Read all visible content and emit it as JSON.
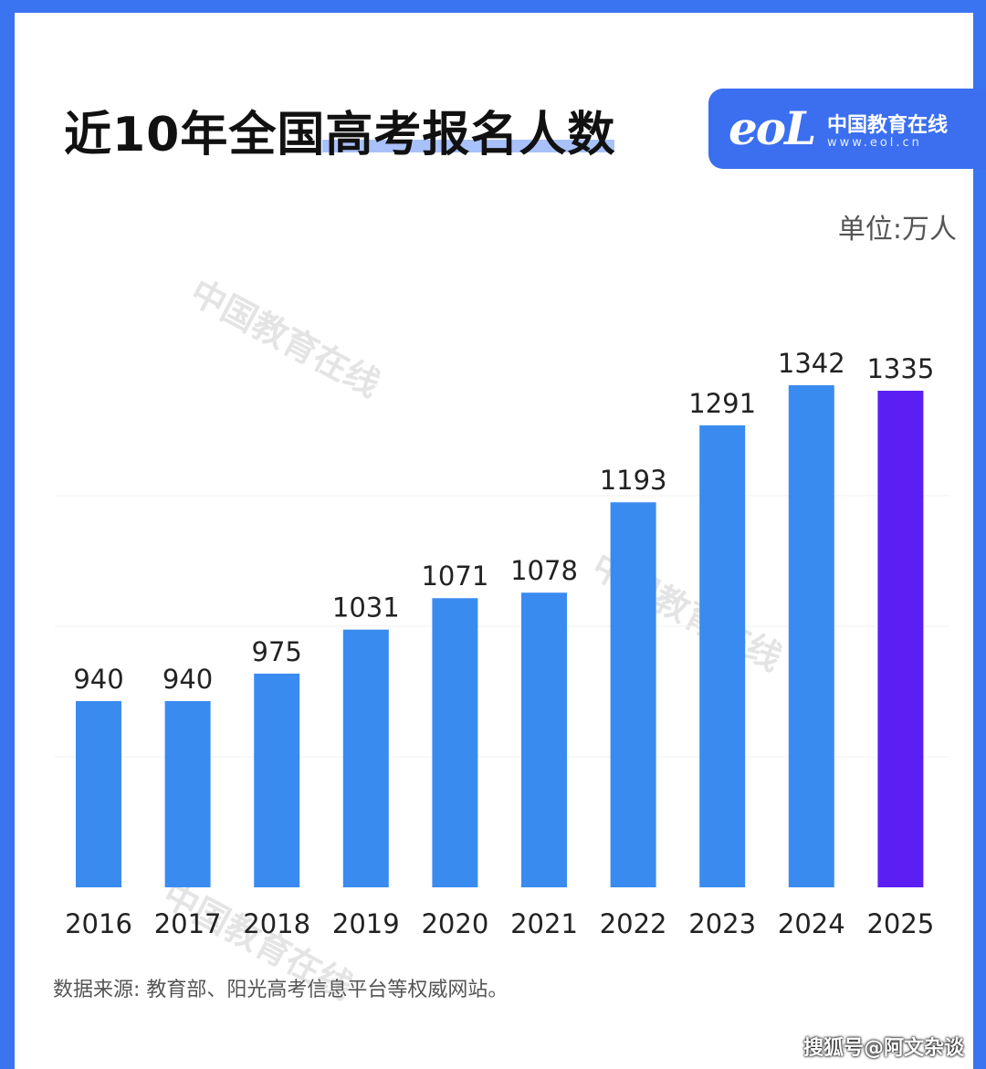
{
  "header": {
    "title": "近10年全国高考报名人数",
    "logo_mark": "eoL",
    "logo_name": "中国教育在线",
    "logo_url": "www.eol.cn"
  },
  "unit_label": "单位:万人",
  "watermark": "中国教育在线",
  "source": "数据来源:  教育部、阳光高考信息平台等权威网站。",
  "credit": "搜狐号@阿文杂谈",
  "colors": {
    "frame": "#3b74f0",
    "bar": "#3a8bf0",
    "bar_highlight": "#5b1ff3",
    "logo_bg": "#3b6ff0"
  },
  "chart_data": {
    "type": "bar",
    "title": "近10年全国高考报名人数",
    "unit": "单位:万人",
    "categories": [
      "2016",
      "2017",
      "2018",
      "2019",
      "2020",
      "2021",
      "2022",
      "2023",
      "2024",
      "2025"
    ],
    "values": [
      940,
      940,
      975,
      1031,
      1071,
      1078,
      1193,
      1291,
      1342,
      1335
    ],
    "highlight_index": 9,
    "grid": true,
    "legend": "none"
  }
}
